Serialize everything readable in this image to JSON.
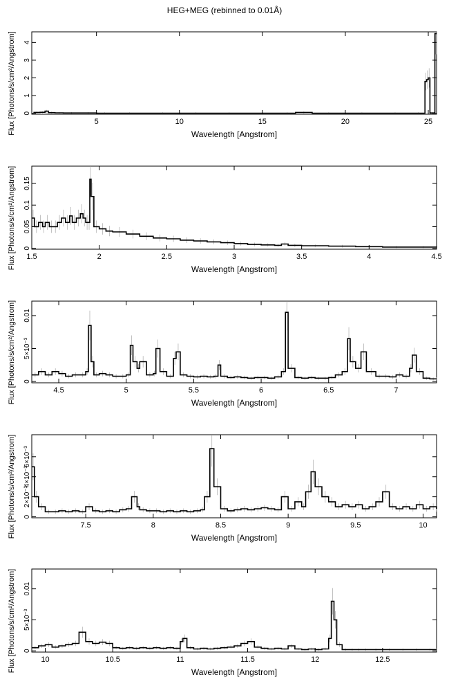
{
  "title": "HEG+MEG (rebinned to 0.01Å)",
  "chart_data": [
    {
      "type": "line",
      "panel": 1,
      "xlabel": "Wavelength [Angstrom]",
      "ylabel": "Flux [Photons/s/cm²/Angstrom]",
      "xlim": [
        1.1,
        25.5
      ],
      "ylim": [
        -0.05,
        4.6
      ],
      "xticks": [
        5,
        10,
        15,
        20,
        25
      ],
      "xtick_labels": [
        "5",
        "10",
        "15",
        "20",
        "25"
      ],
      "yticks": [
        0,
        1,
        2,
        3,
        4
      ],
      "ytick_labels": [
        "0",
        "1",
        "2",
        "3",
        "4"
      ],
      "grid": false,
      "series": [
        {
          "x": [
            1.2,
            1.6,
            1.9,
            2.1,
            2.5,
            3,
            4,
            5,
            6,
            8,
            10,
            12,
            14,
            16,
            17,
            18,
            20,
            22,
            24,
            24.8,
            24.9,
            25,
            25.1,
            25.2,
            25.3,
            25.4,
            25.5
          ],
          "y": [
            0.05,
            0.06,
            0.12,
            0.04,
            0.03,
            0.02,
            0.02,
            0.01,
            0.01,
            0.01,
            0.01,
            0.01,
            0.01,
            0.01,
            0.05,
            0.01,
            0.01,
            0.01,
            0.01,
            1.8,
            1.9,
            2.0,
            0.02,
            0.02,
            0.02,
            4.5,
            4.5
          ]
        }
      ]
    },
    {
      "type": "line",
      "panel": 2,
      "xlabel": "Wavelength [Angstrom]",
      "ylabel": "Flux [Photons/s/cm²/Angstrom]",
      "xlim": [
        1.5,
        4.5
      ],
      "ylim": [
        -0.002,
        0.19
      ],
      "xticks": [
        1.5,
        2,
        2.5,
        3,
        3.5,
        4,
        4.5
      ],
      "xtick_labels": [
        "1.5",
        "2",
        "2.5",
        "3",
        "3.5",
        "4",
        "4.5"
      ],
      "yticks": [
        0,
        0.05,
        0.1,
        0.15
      ],
      "ytick_labels": [
        "0",
        "0.05",
        "0.1",
        "0.15"
      ],
      "grid": false,
      "series": [
        {
          "x": [
            1.5,
            1.52,
            1.55,
            1.58,
            1.6,
            1.63,
            1.66,
            1.69,
            1.72,
            1.75,
            1.78,
            1.8,
            1.83,
            1.86,
            1.88,
            1.9,
            1.92,
            1.93,
            1.94,
            1.96,
            2.0,
            2.05,
            2.1,
            2.2,
            2.3,
            2.4,
            2.5,
            2.6,
            2.7,
            2.8,
            2.9,
            3.0,
            3.1,
            3.2,
            3.3,
            3.35,
            3.4,
            3.5,
            3.7,
            3.9,
            4.1,
            4.3,
            4.5
          ],
          "y": [
            0.07,
            0.05,
            0.06,
            0.05,
            0.06,
            0.05,
            0.05,
            0.06,
            0.07,
            0.06,
            0.075,
            0.06,
            0.07,
            0.08,
            0.07,
            0.06,
            0.06,
            0.16,
            0.12,
            0.05,
            0.045,
            0.04,
            0.038,
            0.033,
            0.028,
            0.024,
            0.022,
            0.019,
            0.017,
            0.015,
            0.013,
            0.011,
            0.009,
            0.008,
            0.007,
            0.01,
            0.007,
            0.006,
            0.005,
            0.004,
            0.003,
            0.003,
            0.002
          ]
        }
      ]
    },
    {
      "type": "line",
      "panel": 3,
      "xlabel": "Wavelength [Angstrom]",
      "ylabel": "Flux [Photons/s/cm²/Angstrom]",
      "xlim": [
        4.3,
        7.3
      ],
      "ylim": [
        -0.0002,
        0.0122
      ],
      "xticks": [
        4.5,
        5,
        5.5,
        6,
        6.5,
        7
      ],
      "xtick_labels": [
        "4.5",
        "5",
        "5.5",
        "6",
        "6.5",
        "7"
      ],
      "yticks": [
        0,
        0.005,
        0.01
      ],
      "ytick_labels": [
        "0",
        "5×10⁻³",
        "0.01"
      ],
      "grid": false,
      "series": [
        {
          "x": [
            4.3,
            4.35,
            4.4,
            4.45,
            4.5,
            4.55,
            4.6,
            4.65,
            4.7,
            4.72,
            4.74,
            4.76,
            4.8,
            4.85,
            4.9,
            4.95,
            5.0,
            5.03,
            5.05,
            5.08,
            5.1,
            5.15,
            5.2,
            5.22,
            5.25,
            5.3,
            5.35,
            5.37,
            5.4,
            5.45,
            5.5,
            5.55,
            5.6,
            5.65,
            5.68,
            5.7,
            5.75,
            5.8,
            5.85,
            5.9,
            5.95,
            6.0,
            6.05,
            6.1,
            6.15,
            6.18,
            6.2,
            6.25,
            6.3,
            6.35,
            6.4,
            6.45,
            6.5,
            6.55,
            6.6,
            6.64,
            6.66,
            6.7,
            6.74,
            6.78,
            6.85,
            6.9,
            6.95,
            7.0,
            7.05,
            7.1,
            7.12,
            7.15,
            7.2,
            7.25,
            7.3
          ],
          "y": [
            0.001,
            0.0015,
            0.001,
            0.0015,
            0.0012,
            0.0008,
            0.001,
            0.001,
            0.0015,
            0.0085,
            0.003,
            0.001,
            0.0012,
            0.001,
            0.0008,
            0.0008,
            0.001,
            0.0055,
            0.003,
            0.002,
            0.003,
            0.001,
            0.0012,
            0.005,
            0.0015,
            0.0008,
            0.0035,
            0.0045,
            0.001,
            0.0008,
            0.0007,
            0.0008,
            0.0007,
            0.0008,
            0.0025,
            0.0008,
            0.0006,
            0.0007,
            0.0006,
            0.0005,
            0.0006,
            0.0006,
            0.0005,
            0.0007,
            0.0015,
            0.0105,
            0.002,
            0.0006,
            0.0005,
            0.0006,
            0.0005,
            0.0005,
            0.0006,
            0.001,
            0.0015,
            0.0065,
            0.003,
            0.002,
            0.0045,
            0.0015,
            0.0008,
            0.0008,
            0.0007,
            0.001,
            0.0008,
            0.002,
            0.004,
            0.0015,
            0.0005,
            0.0004,
            0.0004
          ]
        }
      ]
    },
    {
      "type": "line",
      "panel": 4,
      "xlabel": "Wavelength [Angstrom]",
      "ylabel": "Flux [Photons/s/cm²/Angstrom]",
      "xlim": [
        7.1,
        10.1
      ],
      "ylim": [
        -0.0001,
        0.0082
      ],
      "xticks": [
        7.5,
        8,
        8.5,
        9,
        9.5,
        10
      ],
      "xtick_labels": [
        "7.5",
        "8",
        "8.5",
        "9",
        "9.5",
        "10"
      ],
      "yticks": [
        0,
        0.002,
        0.004,
        0.006
      ],
      "ytick_labels": [
        "0",
        "2×10⁻³",
        "4×10⁻³",
        "6×10⁻³"
      ],
      "grid": false,
      "series": [
        {
          "x": [
            7.1,
            7.12,
            7.15,
            7.2,
            7.25,
            7.3,
            7.35,
            7.4,
            7.45,
            7.5,
            7.55,
            7.6,
            7.65,
            7.7,
            7.75,
            7.8,
            7.84,
            7.88,
            7.9,
            7.95,
            8.0,
            8.05,
            8.1,
            8.15,
            8.2,
            8.25,
            8.3,
            8.35,
            8.38,
            8.42,
            8.45,
            8.5,
            8.55,
            8.6,
            8.65,
            8.7,
            8.75,
            8.8,
            8.85,
            8.9,
            8.95,
            9.0,
            9.05,
            9.1,
            9.13,
            9.17,
            9.2,
            9.25,
            9.3,
            9.35,
            9.4,
            9.45,
            9.5,
            9.55,
            9.6,
            9.65,
            9.7,
            9.75,
            9.8,
            9.85,
            9.9,
            9.95,
            10.0,
            10.05,
            10.1
          ],
          "y": [
            0.005,
            0.002,
            0.001,
            0.0005,
            0.0005,
            0.0006,
            0.0005,
            0.0006,
            0.0005,
            0.001,
            0.0006,
            0.0005,
            0.0006,
            0.0005,
            0.0007,
            0.0008,
            0.002,
            0.001,
            0.0007,
            0.0006,
            0.0006,
            0.0005,
            0.0006,
            0.0005,
            0.0006,
            0.0005,
            0.0006,
            0.0007,
            0.002,
            0.0068,
            0.003,
            0.0008,
            0.0006,
            0.0007,
            0.0008,
            0.0007,
            0.0008,
            0.0009,
            0.0008,
            0.0007,
            0.002,
            0.0008,
            0.0015,
            0.001,
            0.0025,
            0.0045,
            0.003,
            0.002,
            0.0015,
            0.001,
            0.0012,
            0.001,
            0.0012,
            0.0008,
            0.001,
            0.0015,
            0.0025,
            0.001,
            0.0008,
            0.001,
            0.0008,
            0.0012,
            0.0008,
            0.001,
            0.0008
          ]
        }
      ]
    },
    {
      "type": "line",
      "panel": 5,
      "xlabel": "Wavelength [Angstrom]",
      "ylabel": "Flux [Photons/s/cm²/Angstrom]",
      "xlim": [
        9.9,
        12.9
      ],
      "ylim": [
        -0.0002,
        0.0132
      ],
      "xticks": [
        10,
        10.5,
        11,
        11.5,
        12,
        12.5
      ],
      "xtick_labels": [
        "10",
        "10.5",
        "11",
        "11.5",
        "12",
        "12.5"
      ],
      "yticks": [
        0,
        0.005,
        0.01
      ],
      "ytick_labels": [
        "0",
        "5×10⁻³",
        "0.01"
      ],
      "grid": false,
      "series": [
        {
          "x": [
            9.9,
            9.95,
            10.0,
            10.05,
            10.1,
            10.15,
            10.2,
            10.25,
            10.3,
            10.35,
            10.4,
            10.45,
            10.5,
            10.55,
            10.6,
            10.65,
            10.7,
            10.75,
            10.8,
            10.85,
            10.9,
            10.95,
            11.0,
            11.02,
            11.05,
            11.1,
            11.15,
            11.2,
            11.25,
            11.3,
            11.35,
            11.4,
            11.45,
            11.5,
            11.55,
            11.6,
            11.65,
            11.7,
            11.75,
            11.8,
            11.85,
            11.9,
            11.95,
            12.0,
            12.05,
            12.1,
            12.12,
            12.14,
            12.16,
            12.2,
            12.25,
            12.3,
            12.35,
            12.4,
            12.5,
            12.6,
            12.7,
            12.8,
            12.9
          ],
          "y": [
            0.0005,
            0.0008,
            0.001,
            0.0006,
            0.0008,
            0.001,
            0.0012,
            0.003,
            0.0015,
            0.0012,
            0.0014,
            0.0012,
            0.0005,
            0.0004,
            0.0005,
            0.0004,
            0.0005,
            0.0004,
            0.0005,
            0.0004,
            0.0005,
            0.0004,
            0.0015,
            0.002,
            0.0005,
            0.0003,
            0.0004,
            0.0003,
            0.0004,
            0.0005,
            0.0006,
            0.0008,
            0.0012,
            0.0015,
            0.0006,
            0.0004,
            0.0003,
            0.0004,
            0.0003,
            0.0008,
            0.0003,
            0.0002,
            0.0003,
            0.0002,
            0.0003,
            0.002,
            0.008,
            0.005,
            0.001,
            0.0002,
            0.0002,
            0.0002,
            0.0002,
            0.0002,
            0.0002,
            0.0002,
            0.0002,
            0.0002,
            0.0002
          ]
        }
      ]
    }
  ]
}
